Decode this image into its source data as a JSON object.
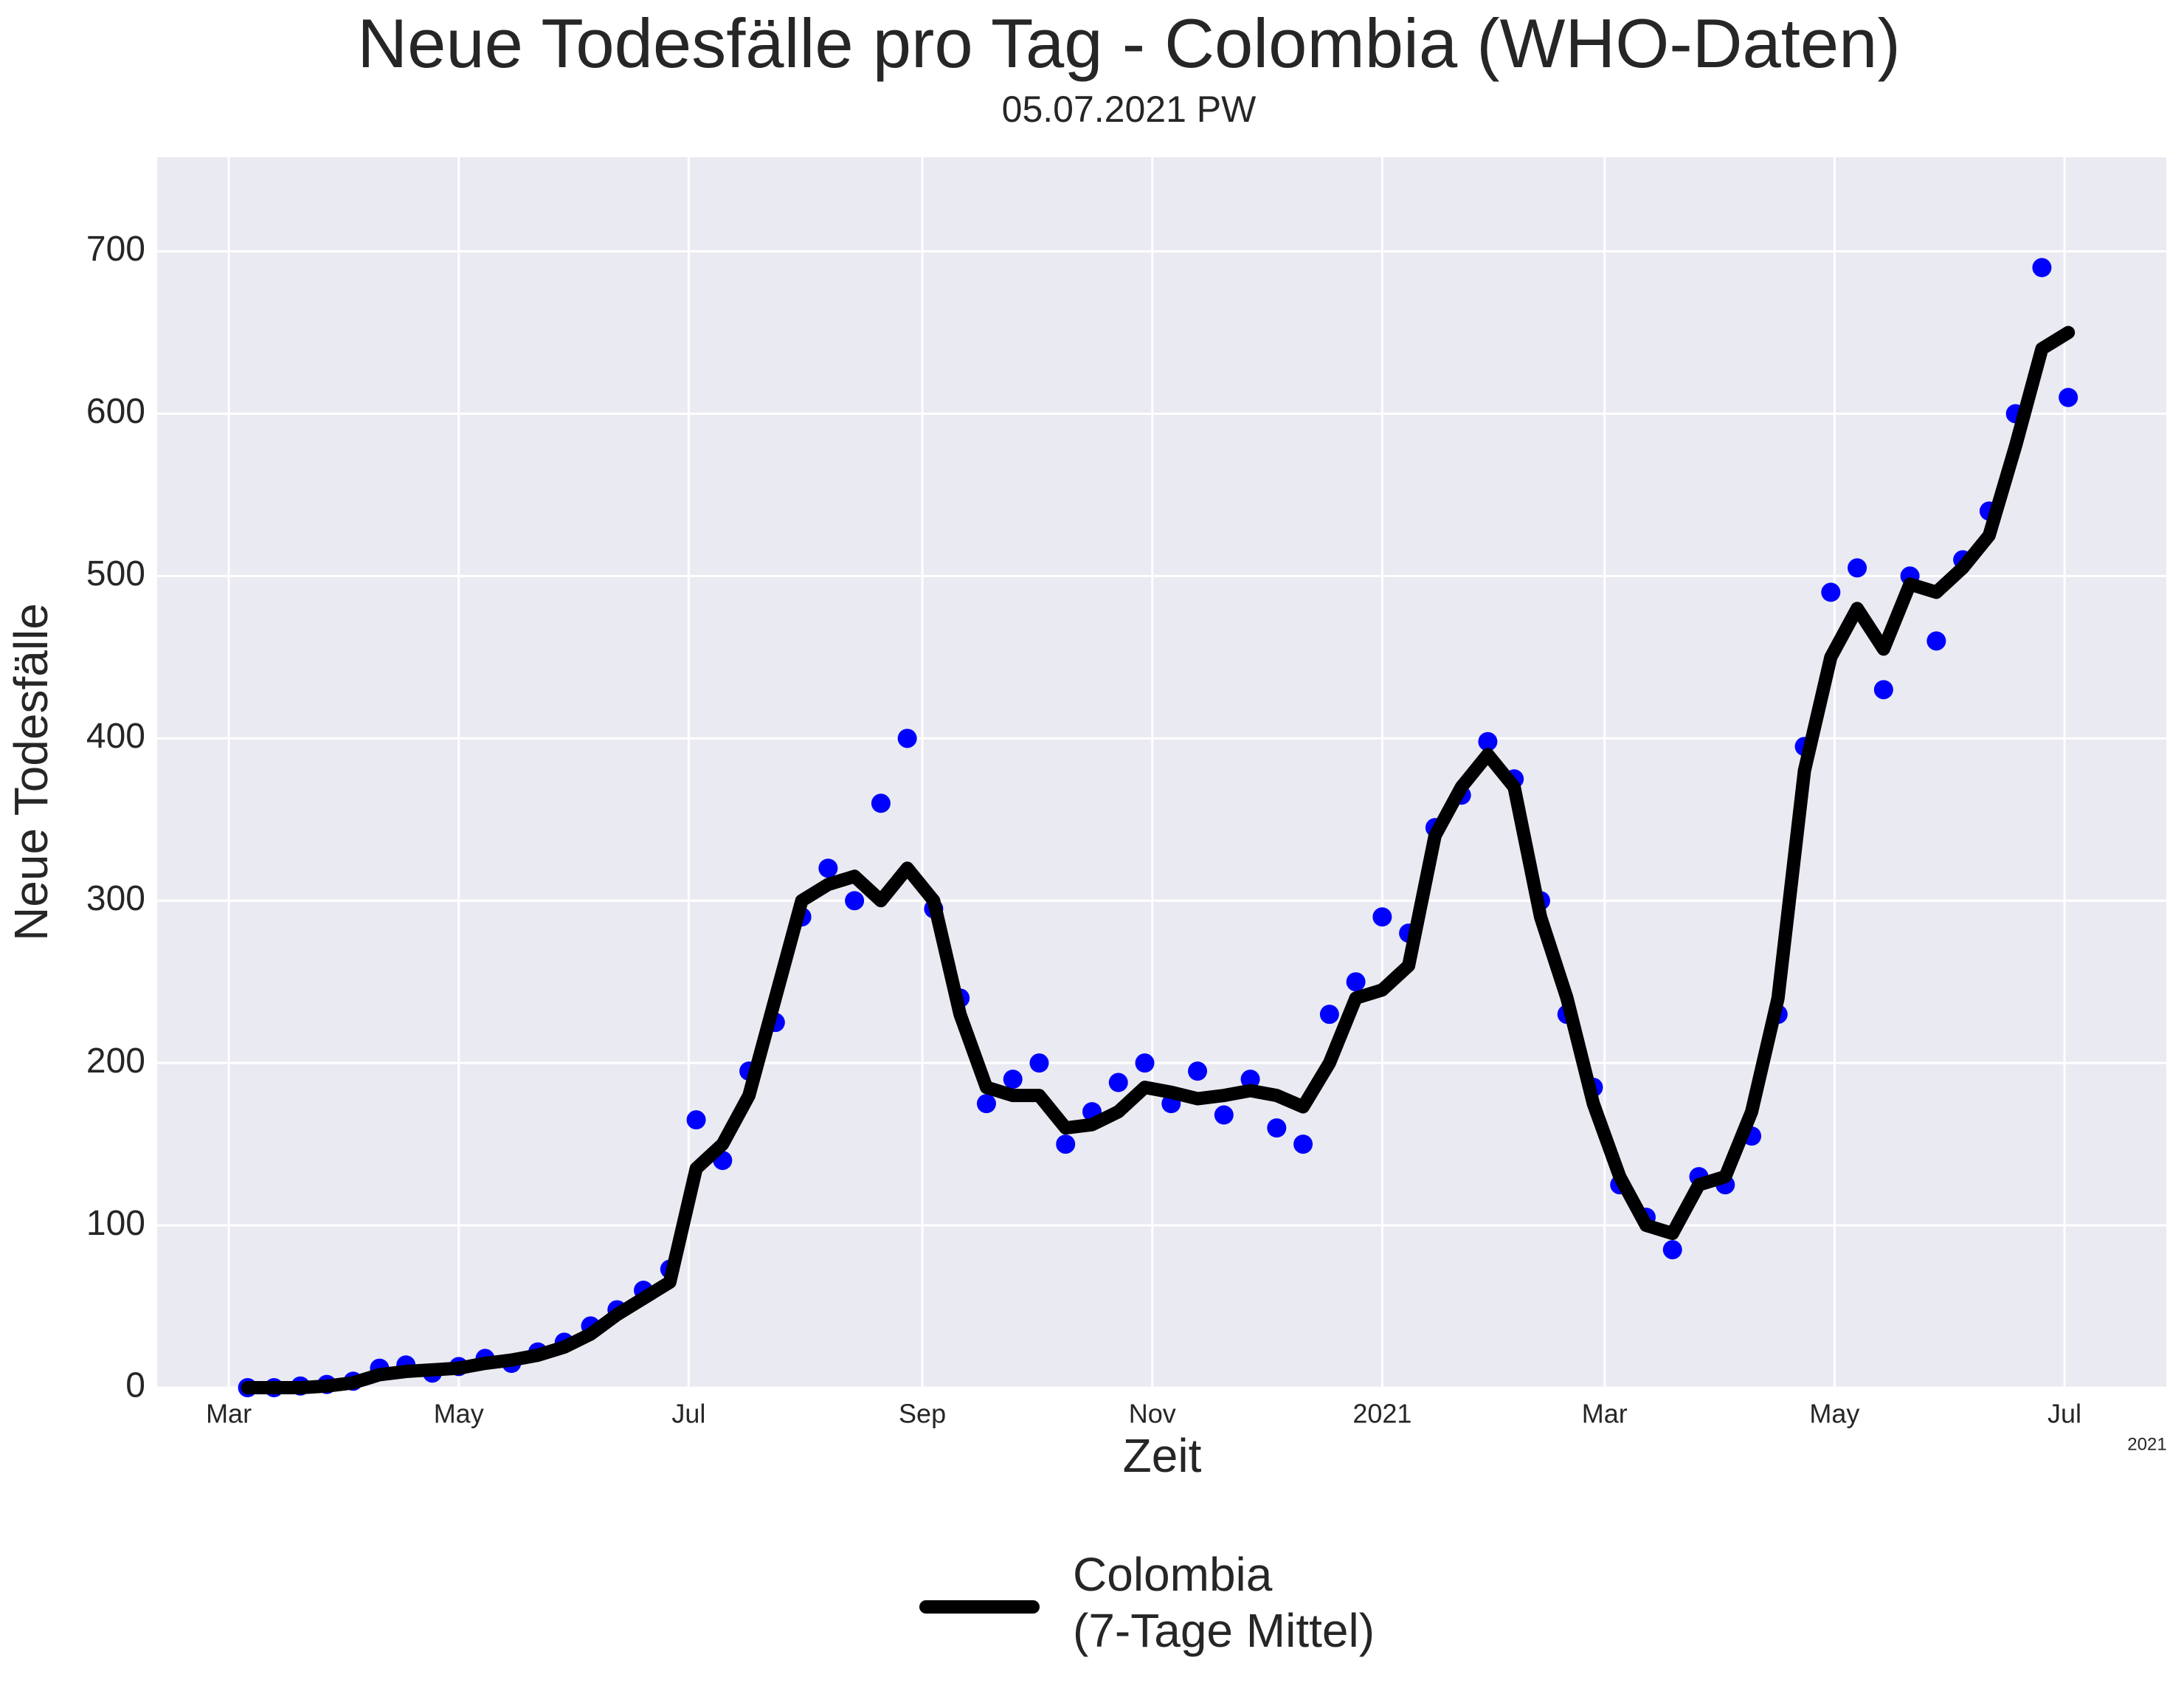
{
  "chart_data": {
    "type": "line-scatter",
    "title": "Neue Todesfälle pro Tag - Colombia (WHO-Daten)",
    "subtitle": "05.07.2021 PW",
    "x_label": "Zeit",
    "y_label": "Neue Todesfälle",
    "x_offset_label": "2021",
    "x": [
      "2020-03-06",
      "2020-03-13",
      "2020-03-20",
      "2020-03-27",
      "2020-04-03",
      "2020-04-10",
      "2020-04-17",
      "2020-04-24",
      "2020-05-01",
      "2020-05-08",
      "2020-05-15",
      "2020-05-22",
      "2020-05-29",
      "2020-06-05",
      "2020-06-12",
      "2020-06-19",
      "2020-06-26",
      "2020-07-03",
      "2020-07-10",
      "2020-07-17",
      "2020-07-24",
      "2020-07-31",
      "2020-08-07",
      "2020-08-14",
      "2020-08-21",
      "2020-08-28",
      "2020-09-04",
      "2020-09-11",
      "2020-09-18",
      "2020-09-25",
      "2020-10-02",
      "2020-10-09",
      "2020-10-16",
      "2020-10-23",
      "2020-10-30",
      "2020-11-06",
      "2020-11-13",
      "2020-11-20",
      "2020-11-27",
      "2020-12-04",
      "2020-12-11",
      "2020-12-18",
      "2020-12-25",
      "2021-01-01",
      "2021-01-08",
      "2021-01-15",
      "2021-01-22",
      "2021-01-29",
      "2021-02-05",
      "2021-02-12",
      "2021-02-19",
      "2021-02-26",
      "2021-03-05",
      "2021-03-12",
      "2021-03-19",
      "2021-03-26",
      "2021-04-02",
      "2021-04-09",
      "2021-04-16",
      "2021-04-23",
      "2021-04-30",
      "2021-05-07",
      "2021-05-14",
      "2021-05-21",
      "2021-05-28",
      "2021-06-04",
      "2021-06-11",
      "2021-06-18",
      "2021-06-25",
      "2021-07-02"
    ],
    "series": [
      {
        "type": "scatter",
        "color": "#0000ff",
        "values": [
          0,
          0,
          1,
          2,
          4,
          12,
          14,
          9,
          13,
          18,
          15,
          22,
          28,
          38,
          48,
          60,
          73,
          165,
          140,
          195,
          225,
          290,
          320,
          300,
          360,
          400,
          295,
          240,
          175,
          190,
          200,
          150,
          170,
          188,
          200,
          175,
          195,
          168,
          190,
          160,
          150,
          230,
          250,
          290,
          280,
          345,
          365,
          398,
          375,
          300,
          230,
          185,
          125,
          105,
          85,
          130,
          125,
          155,
          230,
          395,
          490,
          505,
          430,
          500,
          460,
          510,
          540,
          600,
          690,
          610
        ]
      },
      {
        "type": "line",
        "name": "Colombia\n(7-Tage Mittel)",
        "color": "#000000",
        "values": [
          0,
          0,
          0,
          1,
          3,
          8,
          10,
          11,
          12,
          15,
          17,
          20,
          25,
          33,
          45,
          55,
          65,
          135,
          150,
          180,
          240,
          300,
          310,
          315,
          300,
          320,
          300,
          230,
          185,
          180,
          180,
          160,
          162,
          170,
          185,
          182,
          178,
          180,
          183,
          180,
          173,
          200,
          240,
          245,
          260,
          340,
          370,
          390,
          370,
          290,
          240,
          175,
          130,
          100,
          95,
          125,
          130,
          170,
          240,
          380,
          450,
          480,
          455,
          495,
          490,
          505,
          525,
          580,
          640,
          650
        ]
      }
    ],
    "xlim": [
      "2020-02-11",
      "2021-07-28"
    ],
    "xticks": [
      {
        "value": "2020-03-01",
        "label": "Mar"
      },
      {
        "value": "2020-05-01",
        "label": "May"
      },
      {
        "value": "2020-07-01",
        "label": "Jul"
      },
      {
        "value": "2020-09-01",
        "label": "Sep"
      },
      {
        "value": "2020-11-01",
        "label": "Nov"
      },
      {
        "value": "2021-01-01",
        "label": "2021"
      },
      {
        "value": "2021-03-01",
        "label": "Mar"
      },
      {
        "value": "2021-05-01",
        "label": "May"
      },
      {
        "value": "2021-07-01",
        "label": "Jul"
      }
    ],
    "ylim": [
      0,
      758
    ],
    "yticks": [
      0,
      100,
      200,
      300,
      400,
      500,
      600,
      700
    ],
    "grid": true,
    "legend": "bottom"
  }
}
